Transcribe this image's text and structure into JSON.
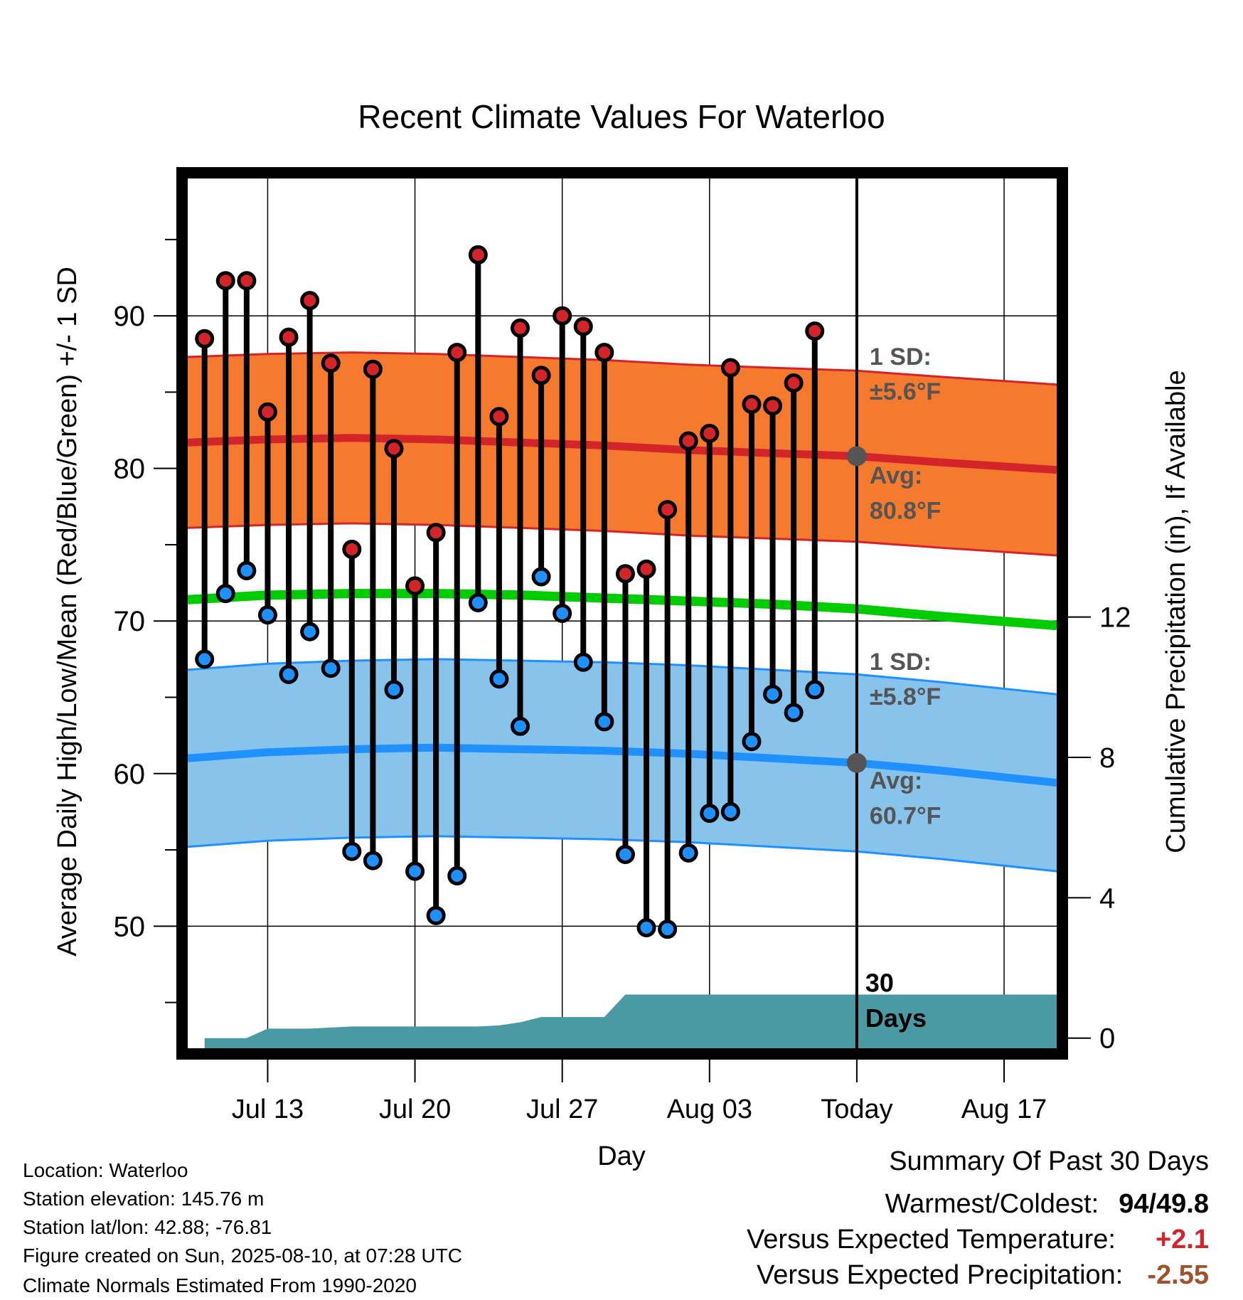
{
  "title": "Recent Climate Values For Waterloo",
  "xlabel": "Day",
  "ylabel_left": "Average Daily High/Low/Mean (Red/Blue/Green) +/- 1 SD",
  "ylabel_right": "Cumulative Precipitation (in), If Available",
  "colors": {
    "high_band": "#f57a2e",
    "high_line": "#d3242a",
    "low_band": "#87c3ea",
    "low_line": "#1e90ff",
    "mean_line": "#00cc00",
    "precip": "#4a9aa3",
    "marker_high": "#d3242a",
    "marker_low": "#1e90ff",
    "annotation": "#555555",
    "temp_anomaly": "#d3242a",
    "precip_anomaly": "#a0522d"
  },
  "chart_data": {
    "type": "line",
    "x_unit": "day of year",
    "xlim": [
      190.2,
      231.5
    ],
    "ylim": [
      42,
      99
    ],
    "y2lim": [
      -0.29,
      24.5
    ],
    "xticks": [
      {
        "x": 194,
        "label": "Jul 13"
      },
      {
        "x": 201,
        "label": "Jul 20"
      },
      {
        "x": 208,
        "label": "Jul 27"
      },
      {
        "x": 215,
        "label": "Aug 03"
      },
      {
        "x": 222,
        "label": "Today"
      },
      {
        "x": 229,
        "label": "Aug 17"
      }
    ],
    "yticks": [
      50,
      60,
      70,
      80,
      90
    ],
    "y_minor_ticks": [
      45,
      55,
      65,
      75,
      85,
      95
    ],
    "y2ticks": [
      0,
      4,
      8,
      12
    ],
    "today_x": 222,
    "daily_high_low": {
      "x": [
        191,
        192,
        193,
        194,
        195,
        196,
        197,
        198,
        199,
        200,
        201,
        202,
        203,
        204,
        205,
        206,
        207,
        208,
        209,
        210,
        211,
        212,
        213,
        214,
        215,
        216,
        217,
        218,
        219,
        220,
        221
      ],
      "high": [
        88.5,
        92.3,
        92.3,
        83.7,
        88.6,
        91.0,
        86.9,
        74.7,
        86.5,
        81.3,
        72.3,
        75.8,
        87.6,
        94.0,
        83.4,
        89.2,
        86.1,
        90.0,
        89.3,
        87.6,
        73.1,
        73.4,
        77.3,
        81.8,
        82.3,
        86.6,
        84.2,
        84.1,
        85.6,
        89.0,
        null
      ],
      "low": [
        67.5,
        71.8,
        73.3,
        70.4,
        66.5,
        69.3,
        66.9,
        54.9,
        54.3,
        65.5,
        53.6,
        50.7,
        53.3,
        71.2,
        66.2,
        63.1,
        72.9,
        70.5,
        67.3,
        63.4,
        54.7,
        49.9,
        49.8,
        54.8,
        57.4,
        57.5,
        62.1,
        65.2,
        64.0,
        65.5,
        null
      ]
    },
    "normal_high": {
      "x": [
        190.2,
        194,
        198,
        202,
        206,
        210,
        214,
        218,
        222,
        226,
        231.5
      ],
      "values": [
        81.7,
        81.9,
        82.0,
        81.9,
        81.7,
        81.5,
        81.2,
        81.0,
        80.8,
        80.4,
        79.9
      ]
    },
    "normal_high_sd": 5.6,
    "normal_low": {
      "x": [
        190.2,
        194,
        198,
        202,
        206,
        210,
        214,
        218,
        222,
        226,
        231.5
      ],
      "values": [
        61.0,
        61.4,
        61.6,
        61.7,
        61.6,
        61.5,
        61.3,
        61.0,
        60.7,
        60.2,
        59.4
      ]
    },
    "normal_low_sd": 5.8,
    "normal_mean": {
      "x": [
        190.2,
        194,
        198,
        202,
        206,
        210,
        214,
        218,
        222,
        226,
        231.5
      ],
      "values": [
        71.4,
        71.7,
        71.8,
        71.8,
        71.7,
        71.5,
        71.3,
        71.1,
        70.8,
        70.3,
        69.7
      ]
    },
    "cumulative_precip": {
      "x": [
        191,
        193,
        194,
        196,
        198,
        202,
        204,
        205,
        206,
        207,
        208,
        210,
        211,
        212,
        214,
        216,
        218,
        220,
        222,
        231.5
      ],
      "values": [
        0,
        0,
        0.27,
        0.27,
        0.33,
        0.33,
        0.33,
        0.36,
        0.45,
        0.6,
        0.6,
        0.6,
        1.24,
        1.24,
        1.24,
        1.24,
        1.24,
        1.24,
        1.24,
        1.24
      ]
    },
    "annotations": {
      "high_sd_label": "1 SD:",
      "high_sd_value": "±5.6°F",
      "high_avg_label": "Avg:",
      "high_avg_value": "80.8°F",
      "low_sd_label": "1 SD:",
      "low_sd_value": "±5.8°F",
      "low_avg_label": "Avg:",
      "low_avg_value": "60.7°F",
      "days_num": "30",
      "days_word": "Days"
    }
  },
  "station_info": [
    "Location: Waterloo",
    "Station elevation: 145.76 m",
    "Station lat/lon: 42.88; -76.81",
    "Figure created on Sun, 2025-08-10, at 07:28 UTC",
    "Climate Normals Estimated From 1990-2020"
  ],
  "summary": {
    "title": "Summary Of Past 30 Days",
    "warm_cold_label": "Warmest/Coldest:",
    "warm_value": "94",
    "slash": "/",
    "cold_value": "49.8",
    "temp_label": "Versus Expected Temperature:",
    "temp_value": "+2.1",
    "precip_label": "Versus Expected Precipitation:",
    "precip_value": "-2.55"
  }
}
